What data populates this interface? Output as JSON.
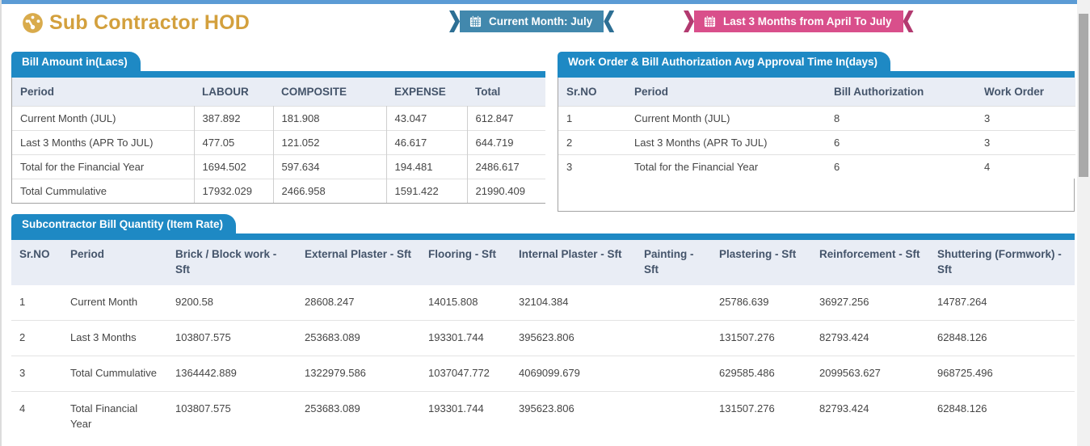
{
  "page": {
    "title": "Sub Contractor HOD",
    "badges": {
      "current_month": "Current Month: July",
      "last_3_months": "Last 3 Months from April To July"
    }
  },
  "colors": {
    "topbar_blue": "#5b9bd5",
    "title_gold": "#d3a03d",
    "tab_blue": "#1e89c4",
    "badge_blue": "#4288ad",
    "badge_pink": "#d94f8b",
    "table_header_bg": "#e9edf5",
    "table_header_text": "#44546a"
  },
  "bill_amount": {
    "tab_title": "Bill Amount in(Lacs)",
    "columns": [
      "Period",
      "LABOUR",
      "COMPOSITE",
      "EXPENSE",
      "Total"
    ],
    "rows": [
      [
        "Current Month (JUL)",
        "387.892",
        "181.908",
        "43.047",
        "612.847"
      ],
      [
        "Last 3 Months (APR To JUL)",
        "477.05",
        "121.052",
        "46.617",
        "644.719"
      ],
      [
        "Total for the Financial Year",
        "1694.502",
        "597.634",
        "194.481",
        "2486.617"
      ],
      [
        "Total Cummulative",
        "17932.029",
        "2466.958",
        "1591.422",
        "21990.409"
      ]
    ]
  },
  "approval_time": {
    "tab_title": "Work Order & Bill Authorization Avg Approval Time In(days)",
    "columns": [
      "Sr.NO",
      "Period",
      "Bill Authorization",
      "Work Order"
    ],
    "rows": [
      [
        "1",
        "Current Month (JUL)",
        "8",
        "3"
      ],
      [
        "2",
        "Last 3 Months (APR To JUL)",
        "6",
        "3"
      ],
      [
        "3",
        "Total for the Financial Year",
        "6",
        "4"
      ]
    ]
  },
  "bill_quantity": {
    "tab_title": "Subcontractor Bill Quantity (Item Rate)",
    "columns": [
      "Sr.NO",
      "Period",
      "Brick / Block work - Sft",
      "External Plaster - Sft",
      "Flooring - Sft",
      "Internal Plaster - Sft",
      "Painting - Sft",
      "Plastering - Sft",
      "Reinforcement - Sft",
      "Shuttering (Formwork) - Sft"
    ],
    "rows": [
      [
        "1",
        "Current Month",
        "9200.58",
        "28608.247",
        "14015.808",
        "32104.384",
        "",
        "25786.639",
        "36927.256",
        "14787.264"
      ],
      [
        "2",
        "Last 3 Months",
        "103807.575",
        "253683.089",
        "193301.744",
        "395623.806",
        "",
        "131507.276",
        "82793.424",
        "62848.126"
      ],
      [
        "3",
        "Total Cummulative",
        "1364442.889",
        "1322979.586",
        "1037047.772",
        "4069099.679",
        "",
        "629585.486",
        "2099563.627",
        "968725.496"
      ],
      [
        "4",
        "Total Financial Year",
        "103807.575",
        "253683.089",
        "193301.744",
        "395623.806",
        "",
        "131507.276",
        "82793.424",
        "62848.126"
      ]
    ]
  }
}
